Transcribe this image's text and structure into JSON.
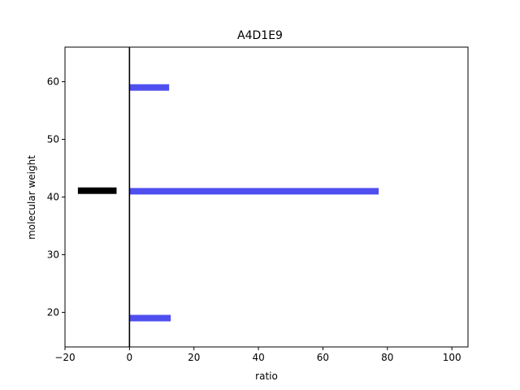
{
  "chart_data": {
    "type": "bar",
    "orientation": "horizontal",
    "title": "A4D1E9",
    "xlabel": "ratio",
    "ylabel": "molecular weight",
    "xlim": [
      -20,
      105
    ],
    "ylim": [
      14,
      66
    ],
    "xticks": [
      -20,
      0,
      20,
      40,
      60,
      80,
      100
    ],
    "yticks": [
      20,
      30,
      40,
      50,
      60
    ],
    "grid": false,
    "legend": "none",
    "zero_line": {
      "x": 0,
      "color": "#000000"
    },
    "series": [
      {
        "color": "#4f4ff0",
        "bars": [
          {
            "y": 59,
            "x_start": 0,
            "x_end": 12.3
          },
          {
            "y": 41,
            "x_start": 0,
            "x_end": 77.3
          },
          {
            "y": 19,
            "x_start": 0,
            "x_end": 12.8
          }
        ]
      },
      {
        "color": "#000000",
        "bars": [
          {
            "y": 41.1,
            "x_start": -16,
            "x_end": -4
          }
        ]
      }
    ]
  }
}
